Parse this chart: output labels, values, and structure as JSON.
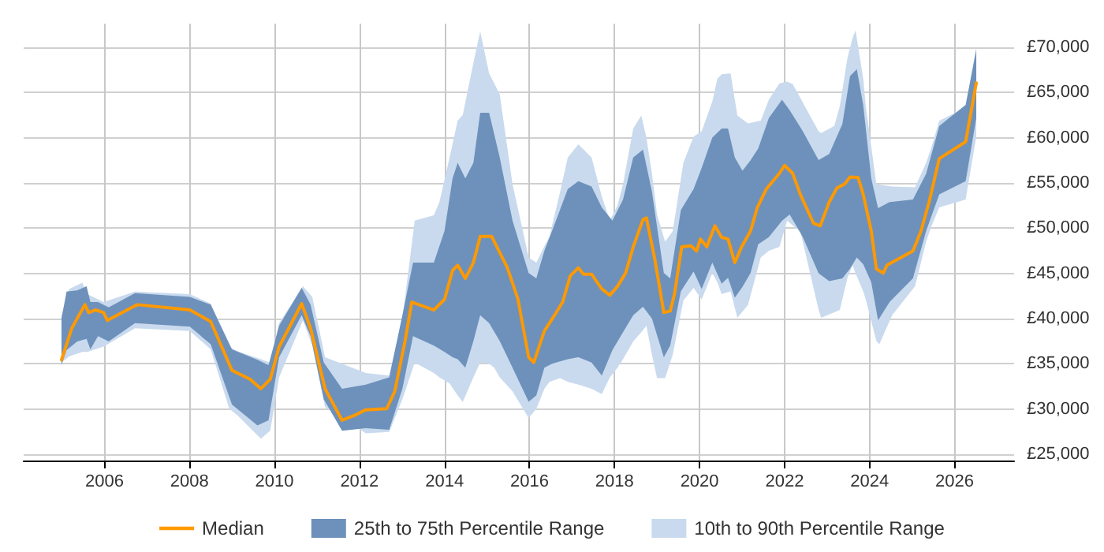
{
  "chart_data": {
    "type": "line",
    "xlim": [
      2004.1,
      2027.4
    ],
    "xticks": [
      2006,
      2008,
      2010,
      2012,
      2014,
      2016,
      2018,
      2020,
      2022,
      2024,
      2026
    ],
    "ylim": [
      24300,
      72600
    ],
    "yticks": [
      {
        "value": 25000,
        "label": "£25,000"
      },
      {
        "value": 30000,
        "label": "£30,000"
      },
      {
        "value": 35000,
        "label": "£35,000"
      },
      {
        "value": 40000,
        "label": "£40,000"
      },
      {
        "value": 45000,
        "label": "£45,000"
      },
      {
        "value": 50000,
        "label": "£50,000"
      },
      {
        "value": 55000,
        "label": "£55,000"
      },
      {
        "value": 60000,
        "label": "£60,000"
      },
      {
        "value": 65000,
        "label": "£65,000"
      },
      {
        "value": 70000,
        "label": "£70,000"
      }
    ],
    "grid": true,
    "legend": "bottom",
    "series": [
      {
        "name": "Median",
        "color": "#ff9900",
        "x": [
          2004.99,
          2005.23,
          2005.54,
          2005.63,
          2005.79,
          2005.98,
          2006.07,
          2006.65,
          2006.78,
          2008.01,
          2008.5,
          2009.0,
          2009.43,
          2009.68,
          2009.9,
          2010.11,
          2010.64,
          2010.85,
          2011.19,
          2011.59,
          2011.9,
          2012.15,
          2012.64,
          2012.83,
          2013.07,
          2013.23,
          2013.75,
          2014.0,
          2014.19,
          2014.31,
          2014.49,
          2014.68,
          2014.84,
          2015.11,
          2015.48,
          2015.73,
          2015.98,
          2016.1,
          2016.35,
          2016.59,
          2016.78,
          2016.96,
          2017.15,
          2017.27,
          2017.46,
          2017.7,
          2017.89,
          2018.07,
          2018.26,
          2018.44,
          2018.67,
          2018.75,
          2018.94,
          2019.16,
          2019.31,
          2019.41,
          2019.58,
          2019.8,
          2019.93,
          2020.02,
          2020.17,
          2020.36,
          2020.52,
          2020.67,
          2020.83,
          2020.99,
          2021.2,
          2021.36,
          2021.57,
          2021.88,
          2022.0,
          2022.19,
          2022.37,
          2022.68,
          2022.84,
          2023.05,
          2023.23,
          2023.42,
          2023.54,
          2023.73,
          2023.85,
          2024.04,
          2024.16,
          2024.32,
          2024.41,
          2025.02,
          2025.21,
          2025.4,
          2025.64,
          2026.26,
          2026.51
        ],
        "values": [
          35430,
          38900,
          41530,
          40660,
          40950,
          40660,
          39790,
          41240,
          41530,
          40950,
          39670,
          34270,
          33280,
          32240,
          33280,
          36880,
          41650,
          38920,
          32240,
          28750,
          29330,
          29910,
          30030,
          31940,
          37460,
          41820,
          40950,
          42110,
          45310,
          45890,
          44430,
          46180,
          49080,
          49080,
          45600,
          42110,
          35720,
          35140,
          38630,
          40370,
          41820,
          44730,
          45600,
          44900,
          44900,
          43270,
          42580,
          43560,
          45020,
          47920,
          50940,
          51120,
          46760,
          40660,
          40830,
          42690,
          47920,
          48040,
          47460,
          48790,
          47920,
          50250,
          48970,
          48790,
          46180,
          47920,
          49670,
          52280,
          54310,
          56060,
          56930,
          56060,
          53730,
          50540,
          50250,
          52870,
          54420,
          54890,
          55650,
          55590,
          53730,
          49670,
          45480,
          45020,
          45890,
          47460,
          49670,
          52870,
          57680,
          59540,
          66050
        ]
      },
      {
        "name": "25th to 75th Percentile Range",
        "type": "area",
        "color": "#6d91bb",
        "x": [
          2004.99,
          2005.11,
          2005.36,
          2005.58,
          2005.67,
          2005.85,
          2006.1,
          2006.72,
          2008.01,
          2008.5,
          2009.0,
          2009.6,
          2009.86,
          2010.11,
          2010.64,
          2010.85,
          2011.16,
          2011.59,
          2012.15,
          2012.7,
          2013.01,
          2013.26,
          2013.75,
          2014.0,
          2014.19,
          2014.31,
          2014.49,
          2014.68,
          2014.84,
          2015.05,
          2015.3,
          2015.6,
          2015.98,
          2016.16,
          2016.35,
          2016.53,
          2016.9,
          2017.15,
          2017.46,
          2017.7,
          2017.95,
          2018.2,
          2018.44,
          2018.67,
          2018.88,
          2019.16,
          2019.31,
          2019.56,
          2019.86,
          2020.05,
          2020.3,
          2020.52,
          2020.67,
          2020.83,
          2021.01,
          2021.2,
          2021.38,
          2021.63,
          2021.94,
          2022.12,
          2022.43,
          2022.8,
          2023.05,
          2023.36,
          2023.54,
          2023.7,
          2023.85,
          2024.04,
          2024.2,
          2024.47,
          2025.02,
          2025.33,
          2025.64,
          2026.26,
          2026.51
        ],
        "values": [
          null,
          null,
          null,
          null,
          null,
          null,
          null,
          null,
          null,
          null,
          null,
          null,
          null,
          null,
          null,
          null,
          null,
          null,
          null,
          null,
          null,
          null,
          null,
          null,
          null,
          null,
          null,
          null,
          null,
          null,
          null,
          null,
          null,
          null,
          null,
          null,
          null,
          null,
          null,
          null,
          null,
          null,
          null,
          null,
          null,
          null,
          null,
          null,
          null,
          null,
          null,
          null,
          null,
          null,
          null,
          null,
          null,
          null,
          null,
          null,
          null,
          null,
          null,
          null,
          null,
          null,
          null,
          null,
          null,
          null,
          null,
          null,
          null,
          null,
          null
        ],
        "upper": [
          40000,
          42980,
          43100,
          43560,
          41820,
          41820,
          41240,
          42810,
          42400,
          41530,
          36590,
          35430,
          34850,
          39210,
          43390,
          41530,
          35140,
          32240,
          32700,
          33500,
          40370,
          46180,
          46180,
          49670,
          55480,
          57220,
          55480,
          57220,
          62740,
          62740,
          57800,
          50830,
          45020,
          44430,
          47500,
          49670,
          54310,
          55190,
          54600,
          52280,
          50830,
          53150,
          57800,
          58670,
          54020,
          45020,
          44430,
          51990,
          54310,
          56640,
          60000,
          61000,
          61000,
          57800,
          56350,
          57500,
          58800,
          62160,
          64190,
          63030,
          60700,
          57510,
          58200,
          61500,
          66800,
          67560,
          63610,
          55500,
          52200,
          52870,
          53150,
          56000,
          61290,
          63610,
          69710
        ],
        "lower": [
          34850,
          36500,
          37460,
          37750,
          36590,
          38050,
          37460,
          39500,
          39090,
          37170,
          30490,
          28170,
          28750,
          35720,
          40370,
          38050,
          31070,
          27590,
          27880,
          27700,
          32240,
          38050,
          37000,
          36300,
          35720,
          35500,
          34560,
          37500,
          40370,
          39500,
          37500,
          34560,
          30800,
          31500,
          34560,
          35000,
          35500,
          35720,
          35140,
          33690,
          36500,
          38500,
          40370,
          41300,
          40000,
          35720,
          37000,
          43000,
          45200,
          43270,
          46180,
          43850,
          44500,
          42300,
          43500,
          45020,
          48210,
          49000,
          50800,
          51500,
          49000,
          45000,
          44140,
          44430,
          45500,
          46760,
          46000,
          44000,
          39790,
          41820,
          44430,
          49670,
          53730,
          55190,
          62160
        ]
      },
      {
        "name": "10th to 90th Percentile Range",
        "type": "area",
        "color": "#c9daee",
        "x": [
          2004.99,
          2005.17,
          2005.48,
          2005.6,
          2005.98,
          2006.72,
          2008.01,
          2008.5,
          2008.94,
          2009.12,
          2009.68,
          2009.9,
          2010.11,
          2010.67,
          2010.89,
          2011.19,
          2012.15,
          2012.7,
          2013.01,
          2013.3,
          2013.75,
          2013.88,
          2014.12,
          2014.31,
          2014.43,
          2014.68,
          2014.84,
          2015.05,
          2015.17,
          2015.3,
          2015.6,
          2015.98,
          2016.16,
          2016.35,
          2016.47,
          2016.72,
          2016.9,
          2017.15,
          2017.46,
          2017.7,
          2017.89,
          2018.07,
          2018.2,
          2018.44,
          2018.63,
          2018.75,
          2018.88,
          2019.0,
          2019.19,
          2019.37,
          2019.62,
          2019.86,
          2020.05,
          2020.3,
          2020.42,
          2020.52,
          2020.73,
          2020.89,
          2021.14,
          2021.44,
          2021.63,
          2021.88,
          2022.06,
          2022.19,
          2022.37,
          2022.8,
          2022.86,
          2023.17,
          2023.3,
          2023.48,
          2023.6,
          2023.67,
          2023.85,
          2023.91,
          2024.16,
          2024.23,
          2024.53,
          2025.07,
          2025.33,
          2025.46,
          2025.64,
          2026.26,
          2026.51
        ],
        "values": [
          null,
          null,
          null,
          null,
          null,
          null,
          null,
          null,
          null,
          null,
          null,
          null,
          null,
          null,
          null,
          null,
          null,
          null,
          null,
          null,
          null,
          null,
          null,
          null,
          null,
          null,
          null,
          null,
          null,
          null,
          null,
          null,
          null,
          null,
          null,
          null,
          null,
          null,
          null,
          null,
          null,
          null,
          null,
          null,
          null,
          null,
          null,
          null,
          null,
          null,
          null,
          null,
          null,
          null,
          null,
          null,
          null,
          null,
          null,
          null,
          null,
          null,
          null,
          null,
          null,
          null,
          null,
          null,
          null,
          null,
          null,
          null,
          null,
          null,
          null,
          null,
          null,
          null,
          null,
          null,
          null,
          null,
          null
        ],
        "upper": [
          40370,
          43270,
          43970,
          42690,
          41820,
          42980,
          42690,
          41650,
          36880,
          36400,
          35500,
          35100,
          39500,
          43560,
          42400,
          35720,
          33980,
          33690,
          40000,
          50830,
          51410,
          52870,
          57800,
          61870,
          62500,
          68260,
          71740,
          67100,
          66000,
          64770,
          54890,
          46760,
          46180,
          48000,
          49080,
          54000,
          57800,
          59250,
          57800,
          53500,
          50830,
          52500,
          54890,
          61000,
          62450,
          60000,
          56060,
          51500,
          48500,
          49670,
          57220,
          60120,
          60700,
          64000,
          66510,
          67000,
          67100,
          62450,
          61580,
          61870,
          64190,
          66000,
          66200,
          65930,
          64400,
          60700,
          60500,
          61290,
          63500,
          68840,
          71000,
          71860,
          66510,
          63500,
          54890,
          54800,
          54600,
          54500,
          57220,
          59000,
          61870,
          63320,
          70000
        ],
        "lower": [
          35140,
          35800,
          36300,
          36300,
          36900,
          38920,
          38630,
          36590,
          30000,
          29330,
          26720,
          27590,
          33500,
          39790,
          37000,
          30200,
          27300,
          27470,
          31070,
          35140,
          33980,
          33500,
          32820,
          31500,
          30780,
          33500,
          35140,
          35000,
          34560,
          33500,
          31940,
          29000,
          30000,
          32240,
          33000,
          33400,
          33000,
          32700,
          32240,
          31650,
          33500,
          34560,
          35500,
          37460,
          38500,
          39210,
          36000,
          33400,
          33400,
          36000,
          42000,
          43400,
          42110,
          45020,
          44000,
          42690,
          43000,
          40080,
          41500,
          46760,
          47500,
          47920,
          50830,
          50300,
          49670,
          41000,
          40080,
          40700,
          40950,
          44500,
          45890,
          45000,
          43000,
          42110,
          37500,
          37170,
          40370,
          43560,
          48500,
          50250,
          52280,
          53150,
          60120
        ]
      }
    ]
  }
}
